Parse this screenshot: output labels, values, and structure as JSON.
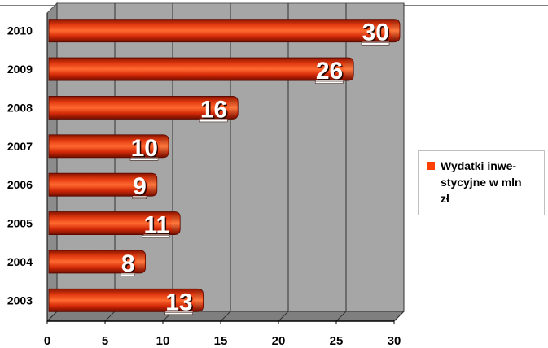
{
  "chart_data": {
    "type": "bar",
    "orientation": "horizontal",
    "categories": [
      "2010",
      "2009",
      "2008",
      "2007",
      "2006",
      "2005",
      "2004",
      "2003"
    ],
    "series": [
      {
        "name": "Wydatki inwe-stycyjne w mln zł",
        "values": [
          30,
          26,
          16,
          10,
          9,
          11,
          8,
          13
        ]
      }
    ],
    "x_ticks": [
      "0",
      "5",
      "10",
      "15",
      "20",
      "25",
      "30"
    ],
    "xlim": [
      0,
      30
    ],
    "grid": true,
    "legend_position": "right",
    "colors": {
      "bar": "#cc2200",
      "bar_light": "#ff5a1e",
      "bar_dark": "#7a1000",
      "plot_bg": "#a6a6a6",
      "legend_swatch": "#ff4000"
    }
  },
  "legend": {
    "label_lines": [
      "Wydatki inwe-",
      "stycyjne w mln",
      "zł"
    ]
  }
}
